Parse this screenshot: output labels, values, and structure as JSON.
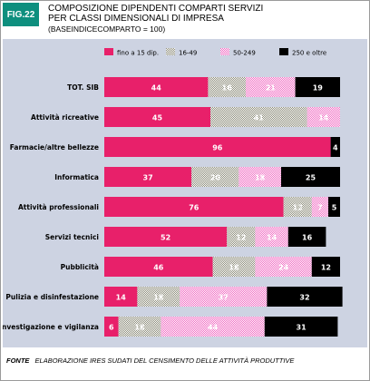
{
  "figure": {
    "badge": "FIG.22",
    "title_line1": "COMPOSIZIONE DIPENDENTI COMPARTI SERVIZI",
    "title_line2": "PER CLASSI DIMENSIONALI DI IMPRESA",
    "subtitle": "(BASEINDICECOMPARTO = 100)",
    "source_label": "FONTE",
    "source_text": "ELABORAZIONE IRES SUDATI DEL CENSIMENTO DELLE ATTIVITÀ PRODUTTIVE"
  },
  "chart_data": {
    "type": "bar",
    "orientation": "horizontal",
    "stacked": true,
    "title": "COMPOSIZIONE DIPENDENTI COMPARTI SERVIZI PER CLASSI DIMENSIONALI DI IMPRESA",
    "subtitle": "(BASEINDICECOMPARTO = 100)",
    "xlim": [
      0,
      100
    ],
    "grid": false,
    "legend_position": "top-right",
    "categories": [
      "TOT. SIB",
      "Attività ricreative",
      "Farmacie/altre bellezze",
      "Informatica",
      "Attività professionali",
      "Servizi tecnici",
      "Pubblicità",
      "Pulizia e disinfestazione",
      "Investigazione e vigilanza"
    ],
    "series": [
      {
        "name": "fino a 15 dip.",
        "color": "#e8206a",
        "pattern": "solid",
        "values": [
          44,
          45,
          96,
          37,
          76,
          52,
          46,
          14,
          6
        ]
      },
      {
        "name": "16-49",
        "color": "#8c8c7a",
        "pattern": "dither",
        "values": [
          16,
          41,
          0,
          20,
          12,
          12,
          18,
          18,
          18
        ]
      },
      {
        "name": "50-249",
        "color": "#f06ac2",
        "pattern": "dither",
        "values": [
          21,
          14,
          0,
          18,
          7,
          14,
          24,
          37,
          44
        ]
      },
      {
        "name": "250 e oltre",
        "color": "#000000",
        "pattern": "solid",
        "values": [
          19,
          0,
          4,
          25,
          5,
          16,
          12,
          32,
          31
        ]
      }
    ],
    "value_labels": [
      [
        "44",
        "16",
        "21",
        "19"
      ],
      [
        "45",
        "41",
        "14",
        ""
      ],
      [
        "96",
        "",
        "",
        "4"
      ],
      [
        "37",
        "20",
        "18",
        "25"
      ],
      [
        "76",
        "12",
        "7",
        "5"
      ],
      [
        "52",
        "12",
        "14",
        "16"
      ],
      [
        "46",
        "18",
        "24",
        "12"
      ],
      [
        "14",
        "18",
        "37",
        "32"
      ],
      [
        "6",
        "18",
        "44",
        "31"
      ]
    ]
  }
}
